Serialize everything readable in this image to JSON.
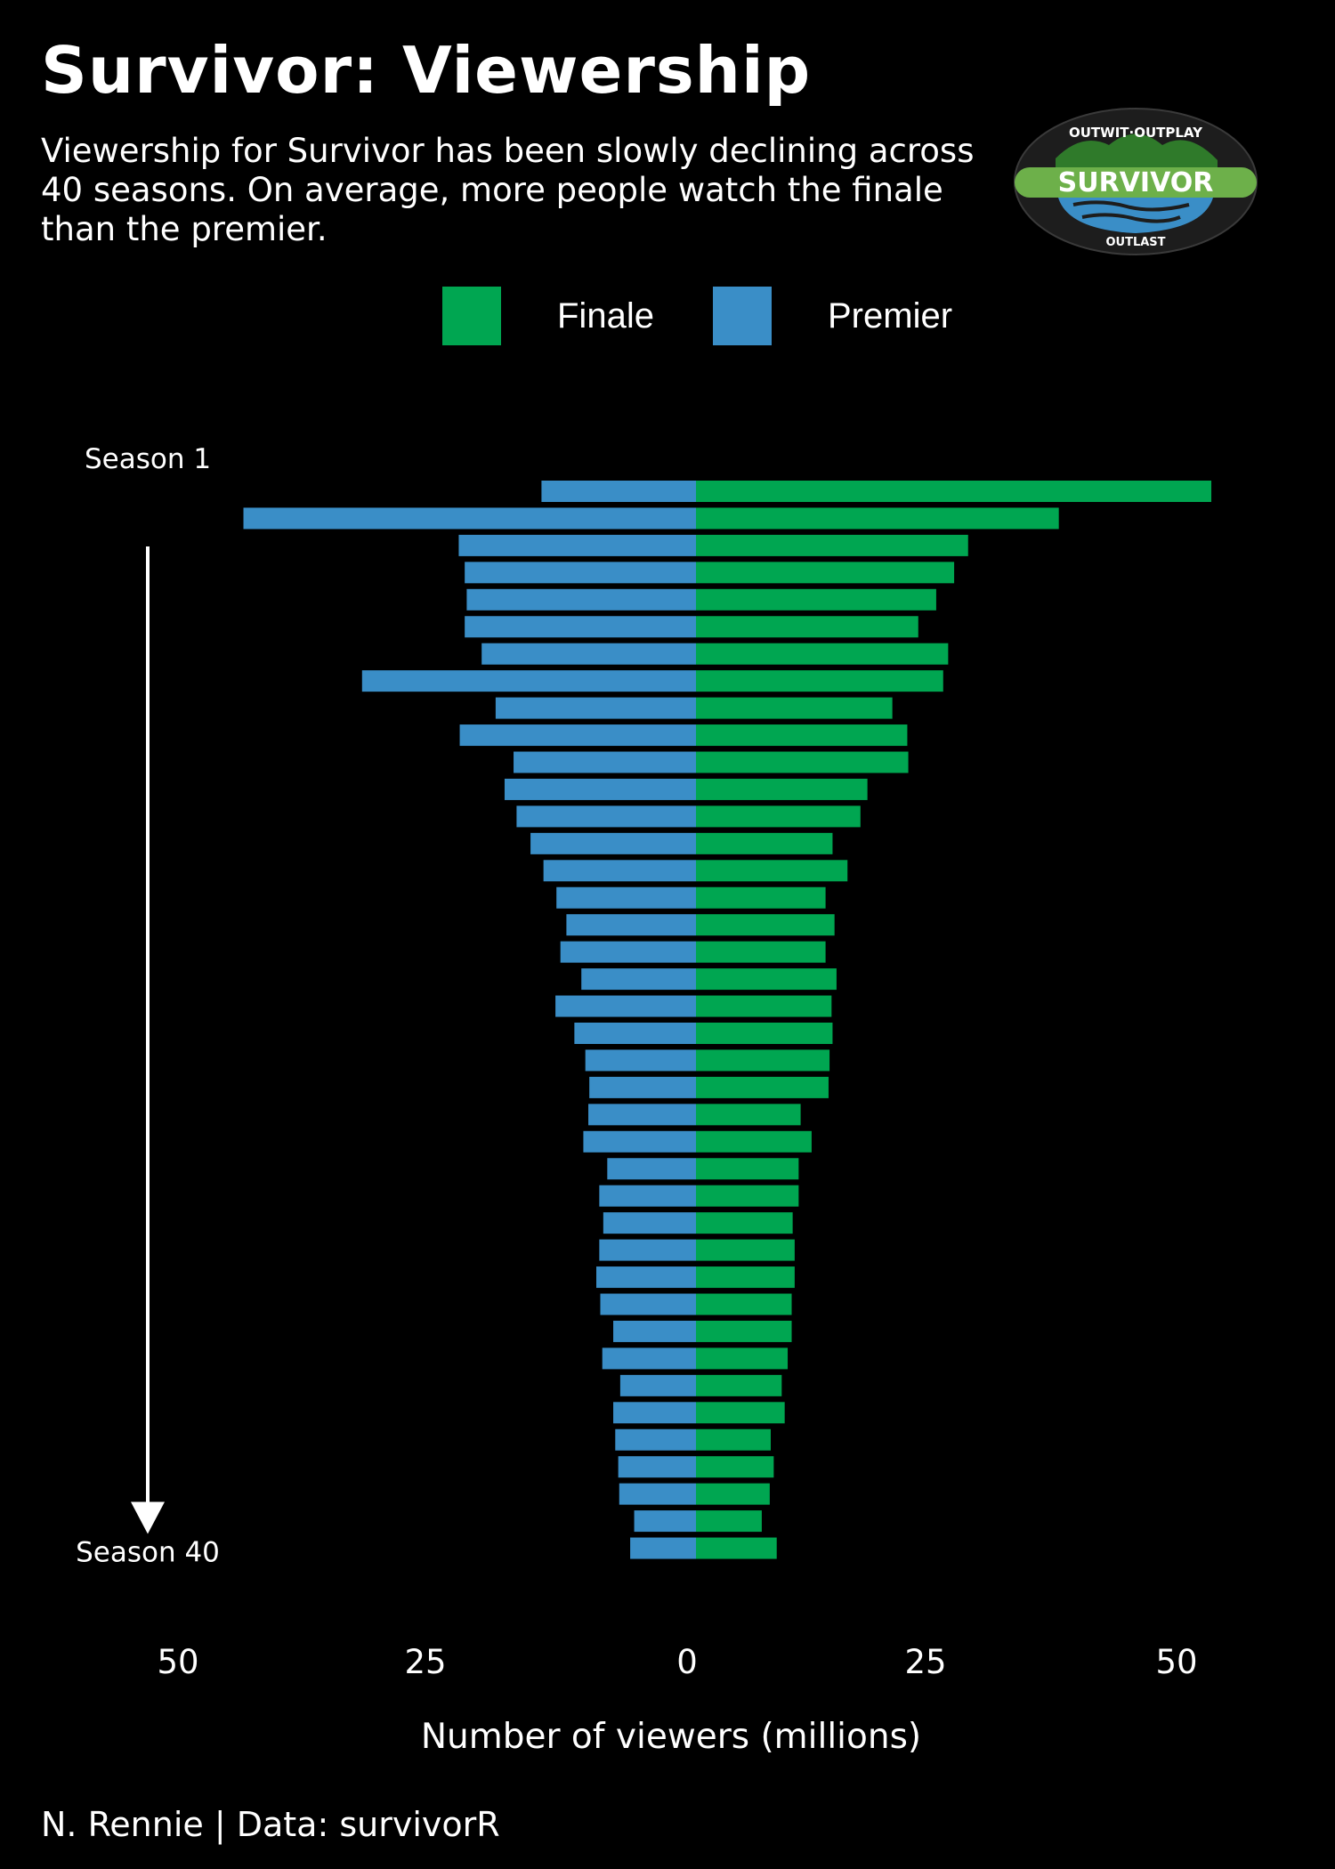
{
  "title": "Survivor: Viewership",
  "subtitle": "Viewership for Survivor has been slowly declining across 40 seasons. On average, more people watch the finale than the premier.",
  "caption": "N. Rennie | Data: survivorR",
  "logo": {
    "top_text": "OUTWIT·OUTPLAY",
    "name": "SURVIVOR",
    "bottom_text": "OUTLAST"
  },
  "colors": {
    "background": "#000000",
    "finale": "#00a651",
    "premier": "#3a8ec7",
    "text": "#ffffff"
  },
  "legend": [
    {
      "label": "Finale",
      "color": "#00a651"
    },
    {
      "label": "Premier",
      "color": "#3a8ec7"
    }
  ],
  "chart_data": {
    "type": "bar",
    "orientation": "horizontal-diverging",
    "xlabel": "Number of viewers (millions)",
    "x_ticks": [
      "50",
      "25",
      "0",
      "25",
      "50"
    ],
    "xlim": [
      -50,
      50
    ],
    "start_label": "Season 1",
    "end_label": "Season 40",
    "categories": [
      1,
      2,
      3,
      4,
      5,
      6,
      7,
      8,
      9,
      10,
      11,
      12,
      13,
      14,
      15,
      16,
      17,
      18,
      19,
      20,
      21,
      22,
      23,
      24,
      25,
      26,
      27,
      28,
      29,
      30,
      31,
      32,
      33,
      34,
      35,
      36,
      37,
      38,
      39,
      40
    ],
    "series": [
      {
        "name": "Premier",
        "values": [
          15.5,
          45.4,
          23.8,
          23.2,
          23.0,
          23.2,
          21.5,
          33.5,
          20.1,
          23.7,
          18.3,
          19.2,
          18.0,
          16.6,
          15.3,
          14.0,
          13.0,
          13.6,
          11.5,
          14.1,
          12.2,
          11.1,
          10.7,
          10.8,
          11.3,
          8.9,
          9.7,
          9.3,
          9.7,
          10.0,
          9.6,
          8.3,
          9.4,
          7.6,
          8.3,
          8.1,
          7.8,
          7.7,
          6.2,
          6.6
        ]
      },
      {
        "name": "Finale",
        "values": [
          51.7,
          36.4,
          27.3,
          25.9,
          24.1,
          22.3,
          25.3,
          24.8,
          19.7,
          21.2,
          21.3,
          17.2,
          16.5,
          13.7,
          15.2,
          13.0,
          13.9,
          13.0,
          14.1,
          13.6,
          13.7,
          13.4,
          13.3,
          10.5,
          11.6,
          10.3,
          10.3,
          9.7,
          9.9,
          9.9,
          9.6,
          9.6,
          9.2,
          8.6,
          8.9,
          7.5,
          7.8,
          7.4,
          6.6,
          8.1
        ]
      }
    ]
  }
}
